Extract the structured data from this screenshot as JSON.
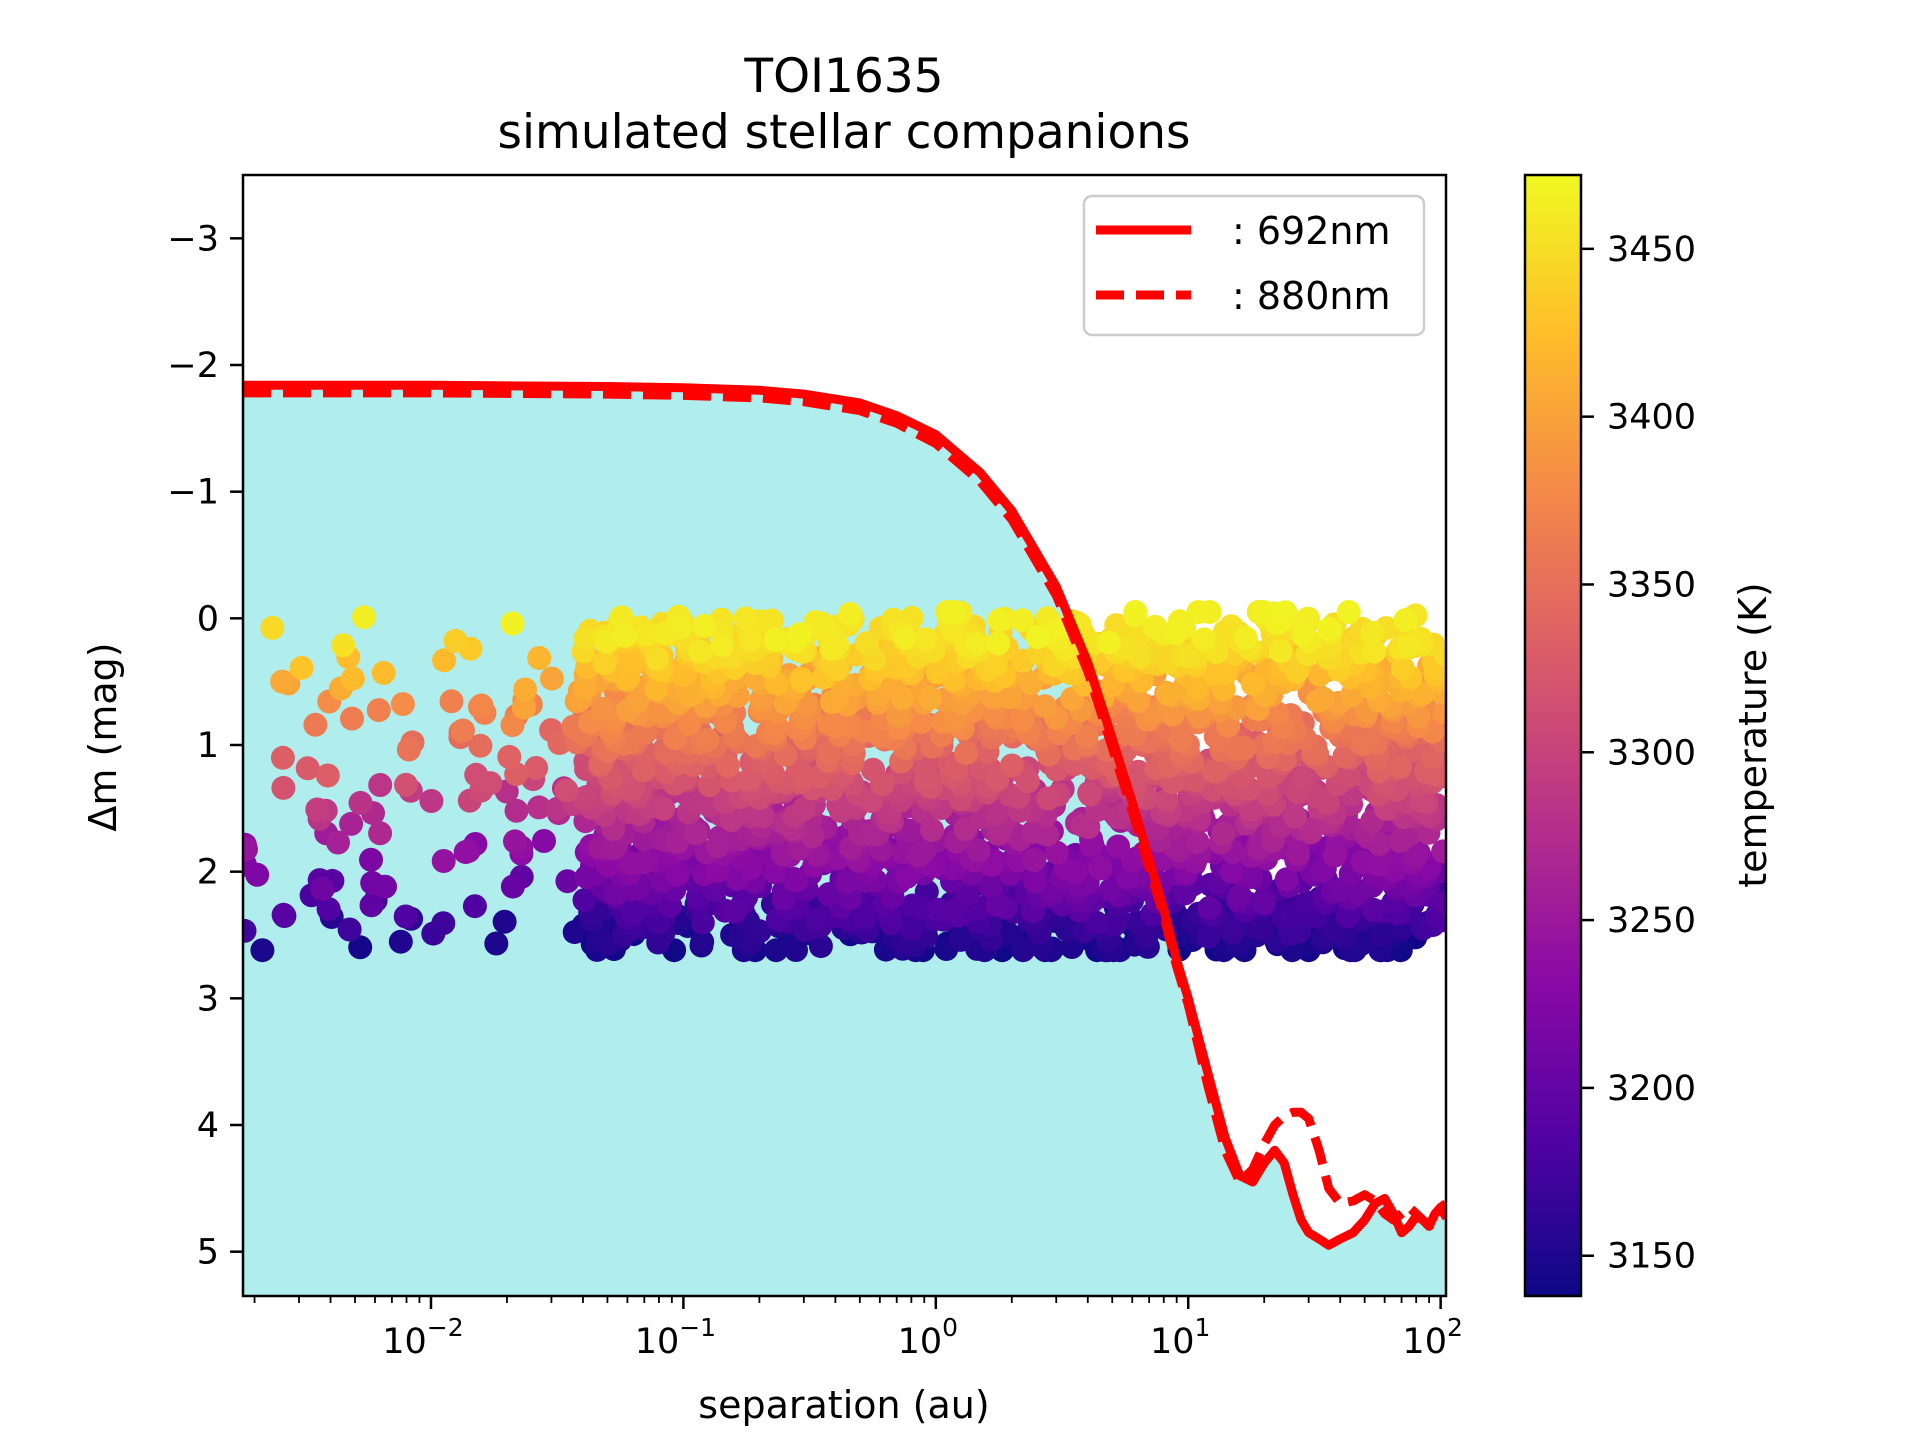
{
  "chart_data": {
    "type": "scatter",
    "title_line1": "TOI1635",
    "title_line2": "simulated stellar companions",
    "xlabel": "separation (au)",
    "ylabel": "Δm (mag)",
    "colorbar_label": "temperature (K)",
    "x_scale": "log",
    "xlim": [
      0.0018,
      105
    ],
    "ylim": [
      5.35,
      -3.5
    ],
    "y_inverted": true,
    "x_ticks": [
      {
        "value": 0.01,
        "base": "10",
        "exp": "−2"
      },
      {
        "value": 0.1,
        "base": "10",
        "exp": "−1"
      },
      {
        "value": 1,
        "base": "10",
        "exp": "0"
      },
      {
        "value": 10,
        "base": "10",
        "exp": "1"
      },
      {
        "value": 100,
        "base": "10",
        "exp": "2"
      }
    ],
    "y_ticks": [
      {
        "value": -3,
        "label": "−3"
      },
      {
        "value": -2,
        "label": "−2"
      },
      {
        "value": -1,
        "label": "−1"
      },
      {
        "value": 0,
        "label": "0"
      },
      {
        "value": 1,
        "label": "1"
      },
      {
        "value": 2,
        "label": "2"
      },
      {
        "value": 3,
        "label": "3"
      },
      {
        "value": 4,
        "label": "4"
      },
      {
        "value": 5,
        "label": "5"
      }
    ],
    "colorbar": {
      "min": 3138,
      "max": 3472,
      "ticks": [
        {
          "value": 3150,
          "label": "3150"
        },
        {
          "value": 3200,
          "label": "3200"
        },
        {
          "value": 3250,
          "label": "3250"
        },
        {
          "value": 3300,
          "label": "3300"
        },
        {
          "value": 3350,
          "label": "3350"
        },
        {
          "value": 3400,
          "label": "3400"
        },
        {
          "value": 3450,
          "label": "3450"
        }
      ],
      "stops": [
        "#0d0887",
        "#5302a3",
        "#8b0aa5",
        "#b83289",
        "#db5c68",
        "#f48849",
        "#febd2a",
        "#f0f921"
      ]
    },
    "fill_color": "#b0eeee",
    "series": [
      {
        "name": ": 692nm",
        "style": "solid",
        "color": "#ff0000",
        "x": [
          0.0018,
          0.01,
          0.05,
          0.1,
          0.2,
          0.3,
          0.5,
          0.7,
          1,
          1.5,
          2,
          3,
          4,
          5,
          6,
          7,
          8,
          9,
          10,
          12,
          14,
          16,
          18,
          20,
          22,
          24,
          26,
          28,
          30,
          33,
          36,
          40,
          45,
          50,
          55,
          60,
          65,
          70,
          75,
          80,
          85,
          90,
          95,
          100,
          105
        ],
        "y": [
          -1.84,
          -1.84,
          -1.83,
          -1.82,
          -1.8,
          -1.77,
          -1.7,
          -1.6,
          -1.45,
          -1.15,
          -0.85,
          -0.25,
          0.35,
          0.95,
          1.45,
          1.9,
          2.3,
          2.7,
          3.0,
          3.6,
          4.1,
          4.4,
          4.45,
          4.3,
          4.2,
          4.3,
          4.55,
          4.75,
          4.85,
          4.9,
          4.95,
          4.9,
          4.85,
          4.75,
          4.62,
          4.58,
          4.7,
          4.85,
          4.8,
          4.72,
          4.75,
          4.8,
          4.7,
          4.65,
          4.62
        ]
      },
      {
        "name": ": 880nm",
        "style": "dashed",
        "color": "#ff0000",
        "x": [
          0.0018,
          0.01,
          0.05,
          0.1,
          0.2,
          0.3,
          0.5,
          0.7,
          1,
          1.5,
          2,
          3,
          4,
          5,
          6,
          7,
          8,
          9,
          10,
          12,
          14,
          16,
          18,
          20,
          22,
          24,
          26,
          28,
          30,
          33,
          36,
          40,
          45,
          50,
          55,
          60,
          65,
          70,
          75,
          80,
          85,
          90,
          95,
          100,
          105
        ],
        "y": [
          -1.78,
          -1.78,
          -1.77,
          -1.76,
          -1.74,
          -1.71,
          -1.64,
          -1.54,
          -1.38,
          -1.08,
          -0.78,
          -0.18,
          0.42,
          1.02,
          1.52,
          1.97,
          2.35,
          2.75,
          3.05,
          3.7,
          4.2,
          4.45,
          4.35,
          4.15,
          4.0,
          3.93,
          3.9,
          3.9,
          3.95,
          4.2,
          4.5,
          4.62,
          4.6,
          4.55,
          4.6,
          4.7,
          4.75,
          4.7,
          4.65,
          4.7,
          4.75,
          4.8,
          4.75,
          4.72,
          4.7
        ]
      }
    ],
    "scatter": {
      "name": "simulated stellar companions",
      "x_range": [
        0.0018,
        105
      ],
      "dm_range": [
        -0.05,
        2.65
      ],
      "temperature_range": [
        3138,
        3472
      ],
      "relation": "delta_m increases as temperature decreases; sparse below ~0.05 au, dense above"
    }
  }
}
